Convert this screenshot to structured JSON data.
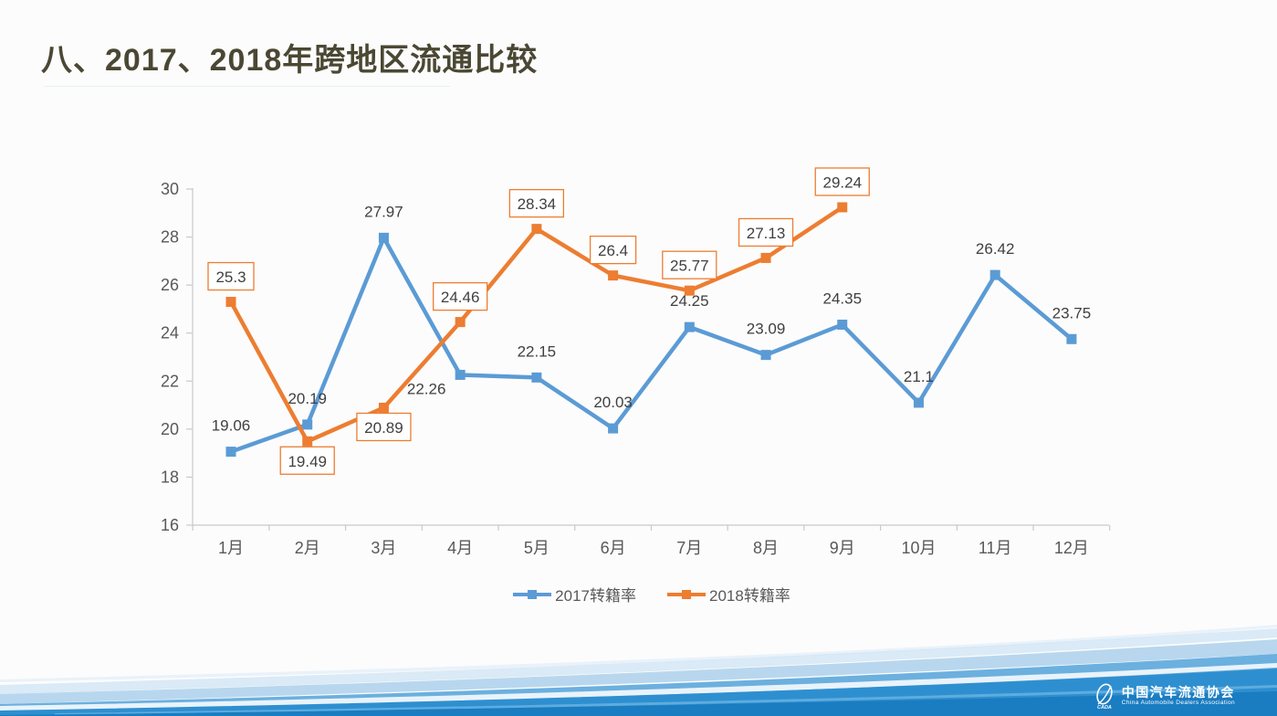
{
  "slide": {
    "title": "八、2017、2018年跨地区流通比较",
    "footer_org_cn": "中国汽车流通协会",
    "footer_org_en": "China Automobile Dealers Association"
  },
  "colors": {
    "title": "#4a4733",
    "axis_text": "#595959",
    "data_label": "#404040",
    "axis_line": "#c9c9c9",
    "series_2017": "#5B9BD5",
    "series_2018": "#ED7D31",
    "footer_blue_dark": "#1a7cc1",
    "footer_blue_mid": "#2e8fd0",
    "footer_blue_light": "#a6cdea"
  },
  "chart_data": {
    "type": "line",
    "title": "",
    "xlabel": "",
    "ylabel": "",
    "categories": [
      "1月",
      "2月",
      "3月",
      "4月",
      "5月",
      "6月",
      "7月",
      "8月",
      "9月",
      "10月",
      "11月",
      "12月"
    ],
    "y_axis": {
      "min": 16,
      "max": 30,
      "step": 2,
      "ticks": [
        16,
        18,
        20,
        22,
        24,
        26,
        28,
        30
      ]
    },
    "ylim": [
      16,
      30
    ],
    "grid": false,
    "legend_position": "bottom",
    "marker": "square",
    "series": [
      {
        "name": "2017转籍率",
        "color": "#5B9BD5",
        "label_style": "plain",
        "values": [
          19.06,
          20.19,
          27.97,
          22.26,
          22.15,
          20.03,
          24.25,
          23.09,
          24.35,
          21.1,
          26.42,
          23.75
        ],
        "labels": [
          "19.06",
          "20.19",
          "27.97",
          "22.26",
          "22.15",
          "20.03",
          "24.25",
          "23.09",
          "24.35",
          "21.1",
          "26.42",
          "23.75"
        ],
        "label_positions": [
          "above",
          "above",
          "above",
          "below-left",
          "above",
          "above",
          "above",
          "above",
          "above",
          "above",
          "above",
          "above"
        ]
      },
      {
        "name": "2018转籍率",
        "color": "#ED7D31",
        "label_style": "boxed",
        "values": [
          25.3,
          19.49,
          20.89,
          24.46,
          28.34,
          26.4,
          25.77,
          27.13,
          29.24
        ],
        "labels": [
          "25.3",
          "19.49",
          "20.89",
          "24.46",
          "28.34",
          "26.4",
          "25.77",
          "27.13",
          "29.24"
        ],
        "label_positions": [
          "above",
          "below",
          "below",
          "above",
          "above",
          "above",
          "above",
          "above",
          "above"
        ]
      }
    ]
  }
}
